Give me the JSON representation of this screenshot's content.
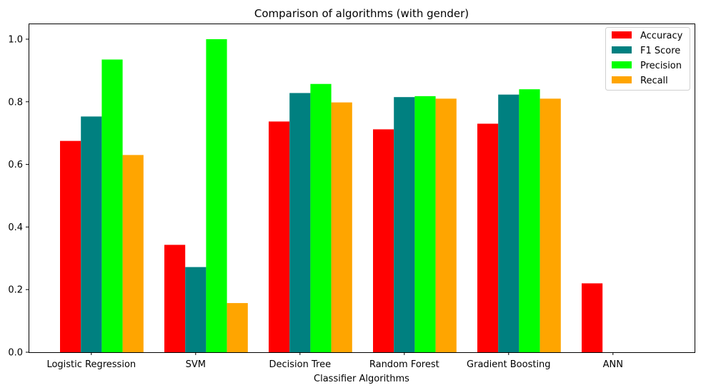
{
  "chart_data": {
    "type": "bar",
    "title": "Comparison of algorithms (with gender)",
    "xlabel": "Classifier Algorithms",
    "ylabel": "",
    "ylim": [
      0,
      1.05
    ],
    "yticks": [
      "0.0",
      "0.2",
      "0.4",
      "0.6",
      "0.8",
      "1.0"
    ],
    "categories": [
      "Logistic Regression",
      "SVM",
      "Decision Tree",
      "Random Forest",
      "Gradient Boosting",
      "ANN"
    ],
    "series": [
      {
        "name": "Accuracy",
        "color": "#ff0000",
        "values": [
          0.675,
          0.343,
          0.737,
          0.712,
          0.73,
          0.22
        ]
      },
      {
        "name": "F1 Score",
        "color": "#008080",
        "values": [
          0.753,
          0.272,
          0.828,
          0.815,
          0.823,
          null
        ]
      },
      {
        "name": "Precision",
        "color": "#00ff00",
        "values": [
          0.935,
          1.0,
          0.857,
          0.818,
          0.84,
          null
        ]
      },
      {
        "name": "Recall",
        "color": "#ffa500",
        "values": [
          0.63,
          0.157,
          0.798,
          0.81,
          0.81,
          null
        ]
      }
    ],
    "legend_position": "top-right",
    "grid": false
  }
}
